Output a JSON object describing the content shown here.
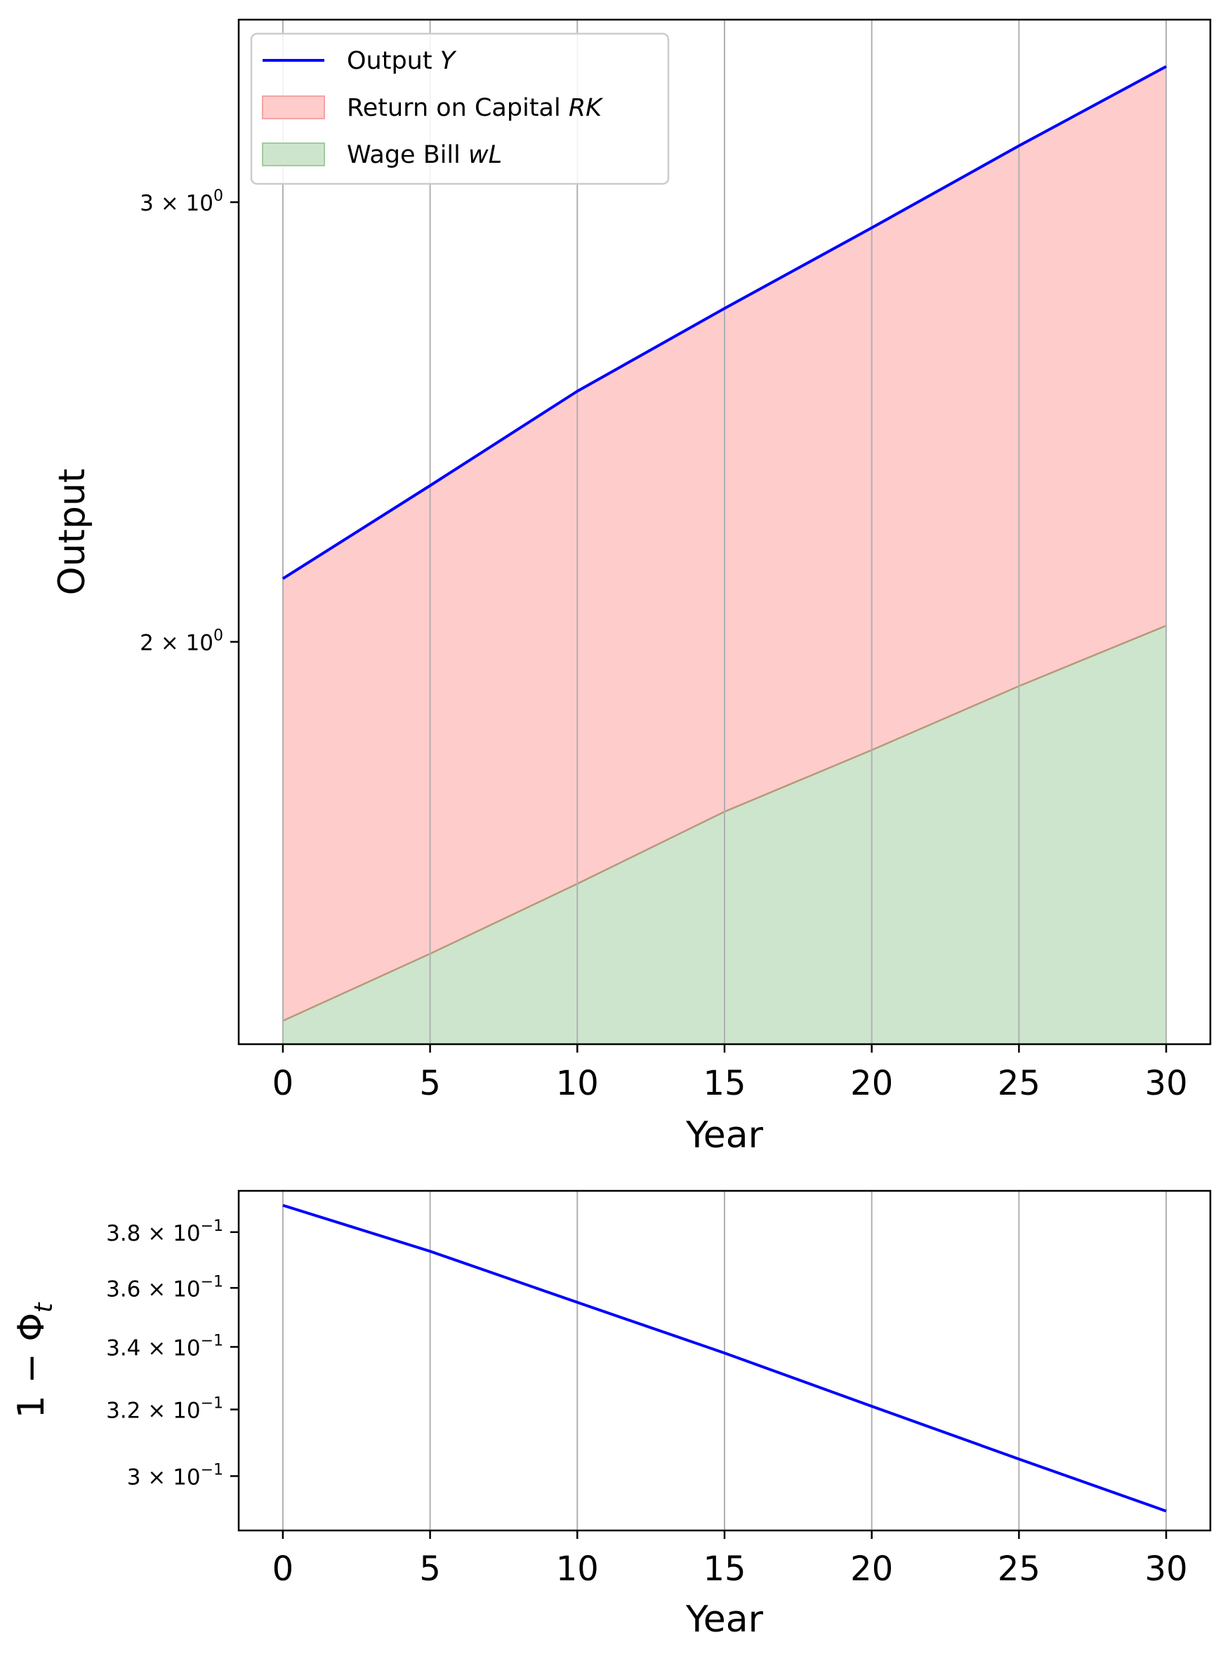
{
  "chart_data": [
    {
      "type": "area",
      "yscale": "log",
      "xlabel": "Year",
      "ylabel": "Output",
      "xlim": [
        -1.5,
        31.5
      ],
      "ylim": [
        1.38,
        3.55
      ],
      "xticks": [
        0,
        5,
        10,
        15,
        20,
        25,
        30
      ],
      "xtick_labels": [
        "0",
        "5",
        "10",
        "15",
        "20",
        "25",
        "30"
      ],
      "yticks": [
        {
          "value": 3,
          "mantissa": "3",
          "base": "10",
          "exponent": "0"
        },
        {
          "value": 2,
          "mantissa": "2",
          "base": "10",
          "exponent": "0"
        }
      ],
      "grid": "x",
      "legend_position": "top-left",
      "x": [
        0,
        5,
        10,
        15,
        20,
        25,
        30
      ],
      "series": [
        {
          "name": "Output Y",
          "name_plain": "Output ",
          "name_math": "Y",
          "kind": "line",
          "color": "#0000ff",
          "values": [
            2.12,
            2.31,
            2.52,
            2.72,
            2.93,
            3.16,
            3.4
          ]
        },
        {
          "name": "Return on Capital RK",
          "name_plain": "Return on Capital ",
          "name_math": "RK",
          "kind": "fill",
          "color": "#ffcccc",
          "edge": "#f4a3a3"
        },
        {
          "name": "Wage Bill wL",
          "name_plain": "Wage Bill ",
          "name_math": "wL",
          "kind": "fill",
          "color": "#cde5cd",
          "edge": "#9fcc9f",
          "values": [
            1.41,
            1.5,
            1.6,
            1.71,
            1.81,
            1.92,
            2.03
          ]
        }
      ]
    },
    {
      "type": "line",
      "yscale": "log",
      "xlabel": "Year",
      "ylabel": "1 − Φt",
      "ylabel_main": "1 − Φ",
      "ylabel_sub": "t",
      "xlim": [
        -1.5,
        31.5
      ],
      "ylim": [
        0.2846,
        0.3955
      ],
      "xticks": [
        0,
        5,
        10,
        15,
        20,
        25,
        30
      ],
      "xtick_labels": [
        "0",
        "5",
        "10",
        "15",
        "20",
        "25",
        "30"
      ],
      "yticks": [
        {
          "value": 0.38,
          "mantissa": "3.8",
          "base": "10",
          "exponent": "−1"
        },
        {
          "value": 0.36,
          "mantissa": "3.6",
          "base": "10",
          "exponent": "−1"
        },
        {
          "value": 0.34,
          "mantissa": "3.4",
          "base": "10",
          "exponent": "−1"
        },
        {
          "value": 0.32,
          "mantissa": "3.2",
          "base": "10",
          "exponent": "−1"
        },
        {
          "value": 0.3,
          "mantissa": "3",
          "base": "10",
          "exponent": "−1"
        }
      ],
      "grid": "x",
      "x": [
        0,
        5,
        10,
        15,
        20,
        25,
        30
      ],
      "series": [
        {
          "color": "#0000ff",
          "values": [
            0.39,
            0.373,
            0.355,
            0.338,
            0.321,
            0.305,
            0.29
          ]
        }
      ]
    }
  ]
}
